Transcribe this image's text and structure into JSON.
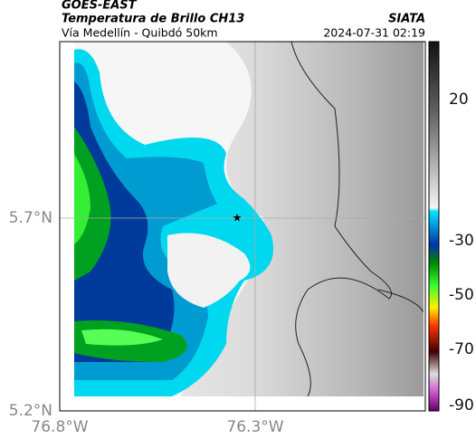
{
  "header": {
    "satellite": "GOES-EAST",
    "title": "Temperatura de Brillo CH13",
    "subtitle": "Vía Medellín - Quibdó 50km",
    "agency": "SIATA",
    "datetime": "2024-07-31 02:19"
  },
  "axes": {
    "longitude_labels": [
      "76.8°W",
      "76.3°W"
    ],
    "latitude_labels": [
      "5.7°N",
      "5.2°N"
    ]
  },
  "colorbar": {
    "tick_labels": [
      "20",
      "-30",
      "-50",
      "-70",
      "-90"
    ]
  }
}
